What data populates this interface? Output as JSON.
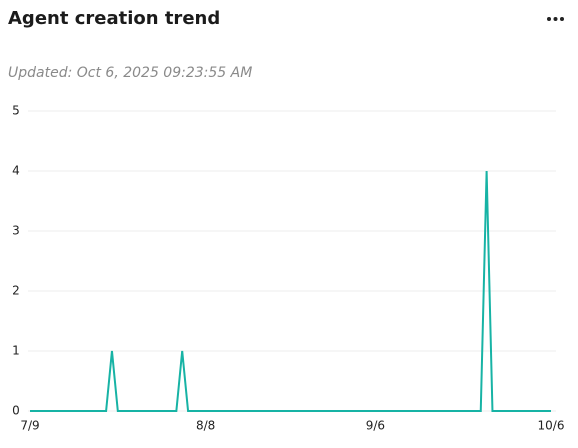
{
  "chart_data": {
    "type": "line",
    "title": "Agent creation trend",
    "subtitle": "Updated: Oct 6, 2025 09:23:55 AM",
    "categories": [
      "7/9",
      null,
      null,
      null,
      null,
      null,
      null,
      null,
      null,
      null,
      null,
      null,
      null,
      null,
      null,
      null,
      null,
      null,
      null,
      null,
      null,
      null,
      null,
      null,
      null,
      null,
      null,
      null,
      null,
      null,
      "8/8",
      null,
      null,
      null,
      null,
      null,
      null,
      null,
      null,
      null,
      null,
      null,
      null,
      null,
      null,
      null,
      null,
      null,
      null,
      null,
      null,
      null,
      null,
      null,
      null,
      null,
      null,
      null,
      null,
      "9/6",
      null,
      null,
      null,
      null,
      null,
      null,
      null,
      null,
      null,
      null,
      null,
      null,
      null,
      null,
      null,
      null,
      null,
      null,
      null,
      null,
      null,
      null,
      null,
      null,
      null,
      null,
      null,
      null,
      null,
      "10/6"
    ],
    "values": [
      0,
      0,
      0,
      0,
      0,
      0,
      0,
      0,
      0,
      0,
      0,
      0,
      0,
      0,
      1,
      0,
      0,
      0,
      0,
      0,
      0,
      0,
      0,
      0,
      0,
      0,
      1,
      0,
      0,
      0,
      0,
      0,
      0,
      0,
      0,
      0,
      0,
      0,
      0,
      0,
      0,
      0,
      0,
      0,
      0,
      0,
      0,
      0,
      0,
      0,
      0,
      0,
      0,
      0,
      0,
      0,
      0,
      0,
      0,
      0,
      0,
      0,
      0,
      0,
      0,
      0,
      0,
      0,
      0,
      0,
      0,
      0,
      0,
      0,
      0,
      0,
      0,
      0,
      4,
      0,
      0,
      0,
      0,
      0,
      0,
      0,
      0,
      0,
      0,
      0
    ],
    "color": "#17b3a5",
    "ylim": [
      0,
      5
    ],
    "yticks": [
      0,
      1,
      2,
      3,
      4,
      5
    ],
    "grid": true
  }
}
